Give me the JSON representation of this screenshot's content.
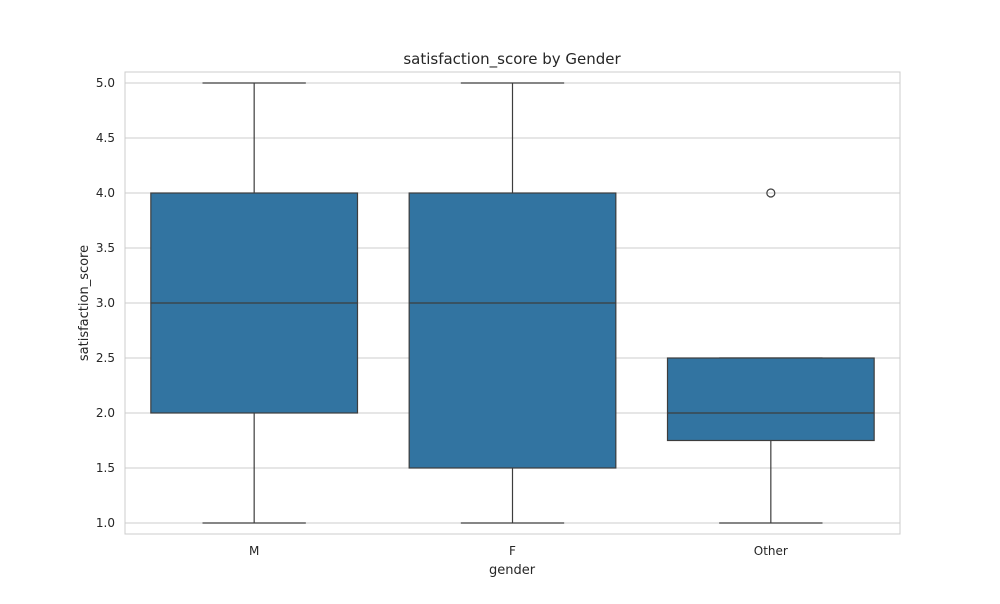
{
  "chart_data": {
    "type": "box",
    "title": "satisfaction_score by Gender",
    "xlabel": "gender",
    "ylabel": "satisfaction_score",
    "categories": [
      "M",
      "F",
      "Other"
    ],
    "y_ticks": [
      "1.0",
      "1.5",
      "2.0",
      "2.5",
      "3.0",
      "3.5",
      "4.0",
      "4.5",
      "5.0"
    ],
    "ylim": [
      0.9,
      5.1
    ],
    "grid": true,
    "box_color": "#3274a1",
    "line_color": "#3d3d3d",
    "grid_color": "#cccccc",
    "boxes": [
      {
        "category": "M",
        "whisker_low": 1.0,
        "q1": 2.0,
        "median": 3.0,
        "q3": 4.0,
        "whisker_high": 5.0,
        "outliers": []
      },
      {
        "category": "F",
        "whisker_low": 1.0,
        "q1": 1.5,
        "median": 3.0,
        "q3": 4.0,
        "whisker_high": 5.0,
        "outliers": []
      },
      {
        "category": "Other",
        "whisker_low": 1.0,
        "q1": 1.75,
        "median": 2.0,
        "q3": 2.5,
        "whisker_high": 2.5,
        "outliers": [
          4.0
        ]
      }
    ]
  }
}
